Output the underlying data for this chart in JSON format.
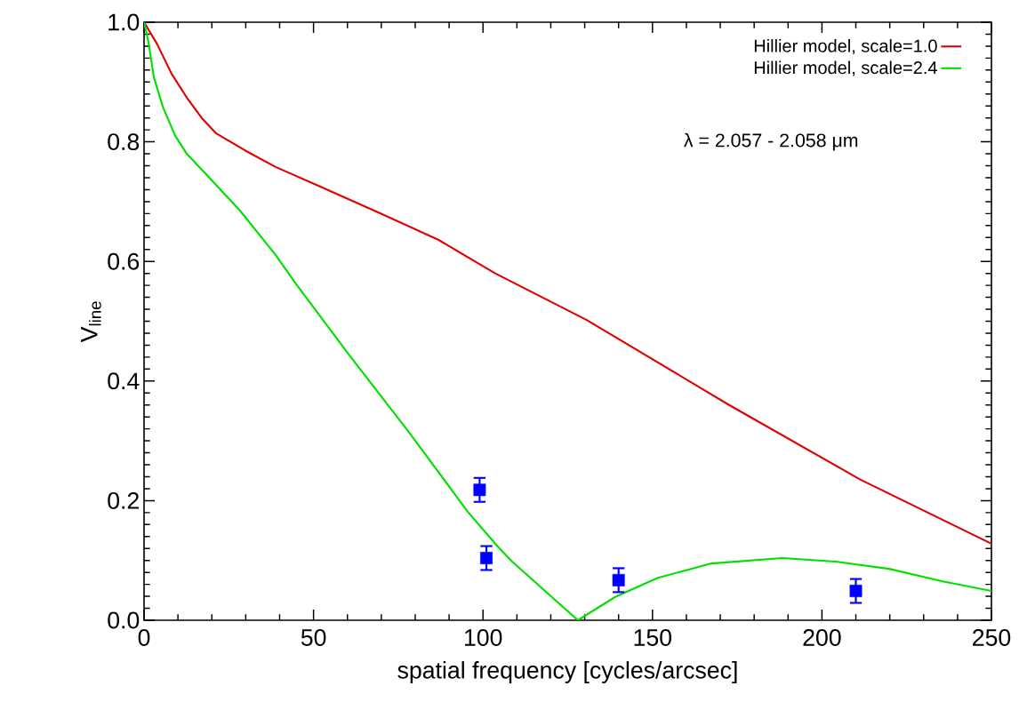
{
  "chart_data": {
    "type": "line",
    "xlabel": "spatial frequency [cycles/arcsec]",
    "ylabel": "V$_{line}$",
    "xlim": [
      0,
      250
    ],
    "ylim": [
      0,
      1
    ],
    "xticks": [
      0,
      50,
      100,
      150,
      200,
      250
    ],
    "yticks": [
      {
        "value": 0,
        "label": "0.0"
      },
      {
        "value": 0.2,
        "label": "0.2"
      },
      {
        "value": 0.4,
        "label": "0.4"
      },
      {
        "value": 0.6,
        "label": "0.6"
      },
      {
        "value": 0.8,
        "label": "0.8"
      },
      {
        "value": 1,
        "label": "1.0"
      }
    ],
    "legend": "top right",
    "marker": "none",
    "line_style": "solid",
    "annotations": [
      "λ = 2.057 - 2.058 μm"
    ],
    "series": [
      {
        "name": "Hillier model, scale=1.0",
        "color": "#e00000",
        "x": [
          0,
          3.9,
          8.1,
          12.6,
          17,
          21.3,
          30,
          38.8,
          52,
          69.5,
          86.9,
          103.6,
          130.6,
          172.6,
          211.4,
          250
        ],
        "values": [
          1.0,
          0.963,
          0.914,
          0.874,
          0.84,
          0.814,
          0.785,
          0.758,
          0.725,
          0.681,
          0.636,
          0.58,
          0.502,
          0.36,
          0.235,
          0.128
        ]
      },
      {
        "name": "Hillier model, scale=2.4",
        "color": "#00e000",
        "x": [
          0,
          1.3,
          2.9,
          5.5,
          9.2,
          12.6,
          18.6,
          28.3,
          38.8,
          44.9,
          60.6,
          78.2,
          95.7,
          104.4,
          108.6,
          128,
          139,
          151.6,
          167.4,
          188.3,
          204,
          219.8,
          235.6,
          250
        ],
        "values": [
          1.0,
          0.967,
          0.908,
          0.859,
          0.81,
          0.78,
          0.744,
          0.685,
          0.611,
          0.562,
          0.443,
          0.314,
          0.18,
          0.123,
          0.098,
          0,
          0.039,
          0.071,
          0.095,
          0.104,
          0.098,
          0.086,
          0.065,
          0.049
        ]
      },
      {
        "type": "scatter",
        "marker": "square",
        "color": "#0000ff",
        "x": [
          99,
          101,
          140,
          210
        ],
        "values": [
          0.218,
          0.104,
          0.067,
          0.049
        ],
        "errors": [
          0.02,
          0.02,
          0.02,
          0.02
        ]
      }
    ]
  }
}
